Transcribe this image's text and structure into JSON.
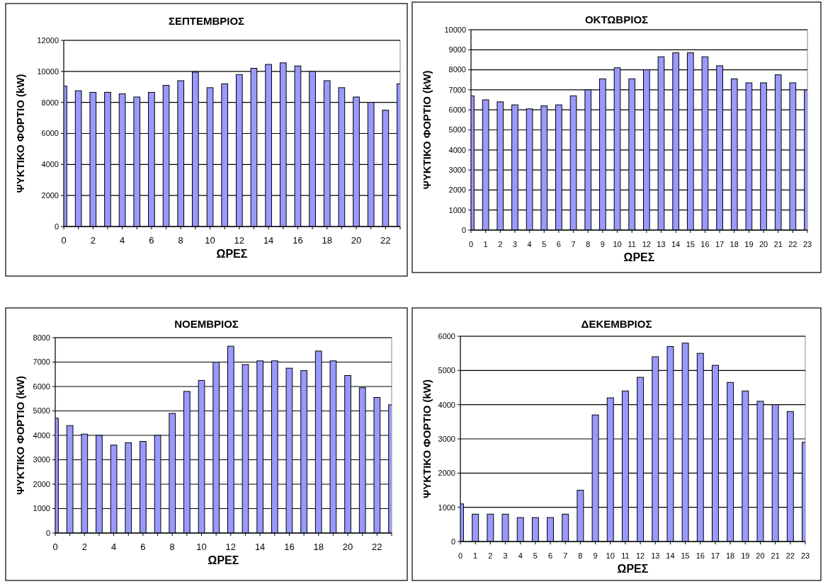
{
  "chart_data": [
    {
      "type": "bar",
      "title": "ΣΕΠΤΕΜΒΡΙΟΣ",
      "xlabel": "ΩΡΕΣ",
      "ylabel": "ΨΥΚΤΙΚΟ ΦΟΡΤΙΟ (kW)",
      "x": [
        0,
        1,
        2,
        3,
        4,
        5,
        6,
        7,
        8,
        9,
        10,
        11,
        12,
        13,
        14,
        15,
        16,
        17,
        18,
        19,
        20,
        21,
        22,
        23
      ],
      "xlim": [
        0,
        23
      ],
      "xticks": [
        0,
        2,
        4,
        6,
        8,
        10,
        12,
        14,
        16,
        18,
        20,
        22
      ],
      "ylim": [
        0,
        12000
      ],
      "yticks": [
        0,
        2000,
        4000,
        6000,
        8000,
        10000,
        12000
      ],
      "grid": "y",
      "series": [
        {
          "color": "#9999ff",
          "values": [
            9050,
            8750,
            8650,
            8650,
            8550,
            8350,
            8650,
            9100,
            9400,
            9950,
            8950,
            9200,
            9800,
            10200,
            10450,
            10550,
            10350,
            10000,
            9400,
            8950,
            8350,
            8000,
            7500,
            9200
          ]
        }
      ]
    },
    {
      "type": "bar",
      "title": "ΟΚΤΩΒΡΙΟΣ",
      "xlabel": "ΩΡΕΣ",
      "ylabel": "ΨΥΚΤΙΚΟ ΦΟΡΤΙΟ (kW)",
      "x": [
        0,
        1,
        2,
        3,
        4,
        5,
        6,
        7,
        8,
        9,
        10,
        11,
        12,
        13,
        14,
        15,
        16,
        17,
        18,
        19,
        20,
        21,
        22,
        23
      ],
      "xlim": [
        0,
        23
      ],
      "xticks": [
        0,
        1,
        2,
        3,
        4,
        5,
        6,
        7,
        8,
        9,
        10,
        11,
        12,
        13,
        14,
        15,
        16,
        17,
        18,
        19,
        20,
        21,
        22,
        23
      ],
      "ylim": [
        0,
        10000
      ],
      "yticks": [
        0,
        1000,
        2000,
        3000,
        4000,
        5000,
        6000,
        7000,
        8000,
        9000,
        10000
      ],
      "grid": "y",
      "series": [
        {
          "color": "#9999ff",
          "values": [
            6700,
            6500,
            6400,
            6250,
            6050,
            6200,
            6250,
            6700,
            7000,
            7550,
            8100,
            7550,
            8000,
            8650,
            8850,
            8850,
            8650,
            8200,
            7550,
            7350,
            7350,
            7750,
            7350,
            7000
          ]
        }
      ]
    },
    {
      "type": "bar",
      "title": "ΝΟΕΜΒΡΙΟΣ",
      "xlabel": "ΩΡΕΣ",
      "ylabel": "ΨΥΚΤΙΚΟ ΦΟΡΤΙΟ (kW)",
      "x": [
        0,
        1,
        2,
        3,
        4,
        5,
        6,
        7,
        8,
        9,
        10,
        11,
        12,
        13,
        14,
        15,
        16,
        17,
        18,
        19,
        20,
        21,
        22,
        23
      ],
      "xlim": [
        0,
        23
      ],
      "xticks": [
        0,
        2,
        4,
        6,
        8,
        10,
        12,
        14,
        16,
        18,
        20,
        22
      ],
      "ylim": [
        0,
        8000
      ],
      "yticks": [
        0,
        1000,
        2000,
        3000,
        4000,
        5000,
        6000,
        7000,
        8000
      ],
      "grid": "y",
      "series": [
        {
          "color": "#9999ff",
          "values": [
            4700,
            4400,
            4050,
            4000,
            3600,
            3700,
            3750,
            4000,
            4900,
            5800,
            6250,
            7000,
            7650,
            6900,
            7050,
            7050,
            6750,
            6650,
            7450,
            7050,
            6450,
            5950,
            5550,
            5250
          ]
        }
      ]
    },
    {
      "type": "bar",
      "title": "ΔΕΚΕΜΒΡΙΟΣ",
      "xlabel": "ΩΡΕΣ",
      "ylabel": "ΨΥΚΤΙΚΟ ΦΟΡΤΙΟ (kW)",
      "x": [
        0,
        1,
        2,
        3,
        4,
        5,
        6,
        7,
        8,
        9,
        10,
        11,
        12,
        13,
        14,
        15,
        16,
        17,
        18,
        19,
        20,
        21,
        22,
        23
      ],
      "xlim": [
        0,
        23
      ],
      "xticks": [
        0,
        1,
        2,
        3,
        4,
        5,
        6,
        7,
        8,
        9,
        10,
        11,
        12,
        13,
        14,
        15,
        16,
        17,
        18,
        19,
        20,
        21,
        22,
        23
      ],
      "ylim": [
        0,
        6000
      ],
      "yticks": [
        0,
        1000,
        2000,
        3000,
        4000,
        5000,
        6000
      ],
      "grid": "y",
      "series": [
        {
          "color": "#9999ff",
          "values": [
            1100,
            800,
            800,
            800,
            700,
            700,
            700,
            800,
            1500,
            3700,
            4200,
            4400,
            4800,
            5400,
            5700,
            5800,
            5500,
            5150,
            4650,
            4400,
            4100,
            4000,
            3800,
            2900
          ]
        }
      ]
    }
  ]
}
